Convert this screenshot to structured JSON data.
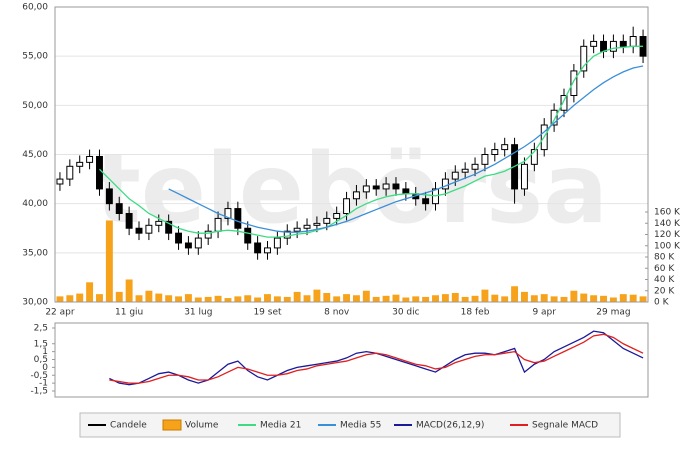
{
  "chart_data": [
    {
      "type": "candlestick",
      "watermark": "telebörsa",
      "categories": [
        "22 apr",
        null,
        null,
        null,
        null,
        null,
        null,
        "11 giu",
        null,
        null,
        null,
        null,
        null,
        null,
        "31 lug",
        null,
        null,
        null,
        null,
        null,
        null,
        "19 set",
        null,
        null,
        null,
        null,
        null,
        null,
        "8 nov",
        null,
        null,
        null,
        null,
        null,
        null,
        "30 dic",
        null,
        null,
        null,
        null,
        null,
        null,
        "18 feb",
        null,
        null,
        null,
        null,
        null,
        null,
        "9 apr",
        null,
        null,
        null,
        null,
        null,
        null,
        "29 mag",
        null,
        null,
        null
      ],
      "ylim": [
        30,
        60
      ],
      "yticks": [
        {
          "value": 30,
          "label": "30,00"
        },
        {
          "value": 35,
          "label": "35,00"
        },
        {
          "value": 40,
          "label": "40,00"
        },
        {
          "value": 45,
          "label": "45,00"
        },
        {
          "value": 50,
          "label": "50,00"
        },
        {
          "value": 55,
          "label": "55,00"
        },
        {
          "value": 60,
          "label": "60,00"
        }
      ],
      "y2lim": [
        0,
        160
      ],
      "y2ticks": [
        {
          "value": 0,
          "label": "0 K"
        },
        {
          "value": 20,
          "label": "20 K"
        },
        {
          "value": 40,
          "label": "40 K"
        },
        {
          "value": 60,
          "label": "60 K"
        },
        {
          "value": 80,
          "label": "80 K"
        },
        {
          "value": 100,
          "label": "100 K"
        },
        {
          "value": 120,
          "label": "120 K"
        },
        {
          "value": 140,
          "label": "140 K"
        },
        {
          "value": 160,
          "label": "160 K"
        }
      ],
      "grid": true,
      "series": [
        {
          "name": "Candele",
          "type": "candlestick",
          "color": "#000000",
          "open": [
            42.0,
            42.5,
            43.8,
            44.2,
            44.8,
            41.5,
            40.0,
            39.0,
            37.5,
            37.0,
            37.8,
            38.2,
            37.0,
            36.0,
            35.5,
            36.5,
            37.2,
            38.5,
            39.5,
            37.5,
            36.0,
            35.0,
            35.5,
            36.5,
            37.2,
            37.5,
            37.8,
            38.0,
            38.5,
            39.0,
            40.5,
            41.2,
            41.8,
            41.5,
            42.0,
            41.5,
            41.0,
            40.5,
            40.0,
            41.5,
            42.5,
            43.2,
            43.5,
            44.0,
            45.0,
            45.5,
            46.0,
            41.5,
            44.0,
            45.5,
            48.0,
            49.5,
            51.0,
            53.5,
            56.0,
            56.5,
            55.5,
            56.5,
            56.0,
            57.0
          ],
          "high": [
            43.2,
            44.5,
            44.9,
            45.5,
            45.5,
            42.2,
            40.7,
            39.7,
            38.2,
            38.5,
            38.9,
            38.9,
            37.7,
            36.7,
            37.2,
            37.9,
            39.2,
            40.2,
            40.2,
            38.2,
            36.7,
            36.2,
            37.2,
            37.9,
            38.2,
            38.5,
            38.7,
            39.2,
            39.7,
            41.2,
            41.9,
            42.5,
            42.5,
            42.7,
            42.7,
            42.2,
            41.7,
            41.2,
            42.2,
            43.2,
            43.9,
            44.2,
            44.7,
            45.7,
            46.2,
            46.7,
            46.7,
            44.7,
            46.2,
            48.7,
            50.2,
            51.7,
            54.2,
            56.7,
            57.2,
            57.2,
            57.2,
            57.2,
            58.0,
            57.7
          ],
          "low": [
            41.3,
            41.8,
            43.1,
            43.5,
            40.8,
            39.3,
            38.3,
            36.8,
            36.3,
            36.3,
            37.1,
            36.3,
            35.3,
            34.8,
            34.8,
            35.8,
            36.5,
            37.8,
            36.8,
            35.3,
            34.3,
            34.3,
            34.8,
            35.8,
            36.5,
            36.8,
            37.1,
            37.3,
            37.8,
            38.3,
            39.8,
            40.5,
            40.8,
            40.8,
            40.8,
            40.3,
            39.8,
            39.3,
            39.3,
            40.8,
            41.8,
            42.5,
            42.8,
            43.3,
            44.3,
            44.8,
            40.0,
            40.8,
            43.3,
            44.8,
            47.3,
            48.8,
            50.3,
            52.8,
            55.3,
            54.8,
            54.8,
            55.3,
            55.3,
            54.3
          ],
          "close": [
            42.5,
            43.8,
            44.2,
            44.8,
            41.5,
            40.0,
            39.0,
            37.5,
            37.0,
            37.8,
            38.2,
            37.0,
            36.0,
            35.5,
            36.5,
            37.2,
            38.5,
            39.5,
            37.5,
            36.0,
            35.0,
            35.5,
            36.5,
            37.2,
            37.5,
            37.8,
            38.0,
            38.5,
            39.0,
            40.5,
            41.2,
            41.8,
            41.5,
            42.0,
            41.5,
            41.0,
            40.5,
            40.0,
            41.5,
            42.5,
            43.2,
            43.5,
            44.0,
            45.0,
            45.5,
            46.0,
            41.5,
            44.0,
            45.5,
            48.0,
            49.5,
            51.0,
            53.5,
            56.0,
            56.5,
            55.5,
            56.5,
            56.0,
            57.0,
            55.0
          ]
        },
        {
          "name": "Volume",
          "type": "bar",
          "axis": "y2",
          "color": "#f7a21b",
          "values": [
            10,
            12,
            15,
            35,
            14,
            145,
            18,
            40,
            12,
            20,
            15,
            12,
            10,
            14,
            8,
            9,
            11,
            7,
            10,
            12,
            8,
            14,
            10,
            9,
            18,
            12,
            22,
            16,
            10,
            14,
            12,
            20,
            9,
            11,
            13,
            8,
            10,
            9,
            12,
            14,
            16,
            9,
            11,
            22,
            13,
            10,
            28,
            18,
            12,
            14,
            10,
            9,
            20,
            15,
            12,
            11,
            8,
            14,
            13,
            10
          ]
        },
        {
          "name": "Media 21",
          "type": "line",
          "color": "#3ddc84",
          "values": [
            null,
            null,
            null,
            null,
            43.5,
            42.5,
            41.5,
            40.5,
            39.8,
            39.0,
            38.5,
            38.0,
            37.5,
            37.2,
            37.0,
            37.0,
            37.2,
            37.3,
            37.2,
            37.0,
            36.8,
            36.6,
            36.6,
            36.7,
            36.9,
            37.0,
            37.3,
            37.6,
            38.2,
            38.8,
            39.5,
            40.0,
            40.4,
            40.7,
            40.9,
            41.0,
            41.0,
            40.9,
            40.8,
            41.0,
            41.4,
            41.8,
            42.3,
            42.8,
            43.0,
            43.3,
            43.8,
            44.3,
            45.3,
            46.8,
            48.5,
            50.5,
            52.5,
            54.0,
            55.0,
            55.5,
            55.8,
            55.9,
            56.0,
            56.0
          ]
        },
        {
          "name": "Media 55",
          "type": "line",
          "color": "#3a8fd9",
          "values": [
            null,
            null,
            null,
            null,
            null,
            null,
            null,
            null,
            null,
            null,
            null,
            41.5,
            41.0,
            40.5,
            40.0,
            39.5,
            39.0,
            38.6,
            38.2,
            37.9,
            37.6,
            37.4,
            37.2,
            37.1,
            37.1,
            37.2,
            37.4,
            37.6,
            37.9,
            38.2,
            38.6,
            39.0,
            39.4,
            39.8,
            40.2,
            40.5,
            40.8,
            41.1,
            41.4,
            41.8,
            42.2,
            42.6,
            43.0,
            43.5,
            44.0,
            44.6,
            45.2,
            45.8,
            46.5,
            47.3,
            48.2,
            49.1,
            50.0,
            50.8,
            51.6,
            52.3,
            52.9,
            53.4,
            53.8,
            54.0
          ]
        }
      ]
    },
    {
      "type": "line",
      "ylim": [
        -1.5,
        2.5
      ],
      "yticks": [
        {
          "value": 2.5,
          "label": "2,5"
        },
        {
          "value": 1.5,
          "label": "1,5"
        },
        1,
        {
          "value": 0.5,
          "label": "0,5"
        },
        0,
        {
          "value": -0.5,
          "label": "-0,5"
        },
        -1,
        {
          "value": -1.5,
          "label": "-1,5"
        }
      ],
      "series": [
        {
          "name": "MACD(26,12,9)",
          "color": "#1a1a99",
          "values": [
            null,
            null,
            null,
            null,
            null,
            -0.7,
            -1.0,
            -1.1,
            -1.0,
            -0.7,
            -0.4,
            -0.3,
            -0.5,
            -0.8,
            -1.0,
            -0.8,
            -0.3,
            0.2,
            0.4,
            -0.2,
            -0.6,
            -0.8,
            -0.5,
            -0.2,
            0.0,
            0.1,
            0.2,
            0.3,
            0.4,
            0.6,
            0.9,
            1.0,
            0.9,
            0.7,
            0.5,
            0.3,
            0.1,
            -0.1,
            -0.3,
            0.1,
            0.5,
            0.8,
            0.9,
            0.9,
            0.8,
            1.0,
            1.2,
            -0.3,
            0.2,
            0.5,
            1.0,
            1.3,
            1.6,
            1.9,
            2.3,
            2.2,
            1.7,
            1.2,
            0.9,
            0.6
          ]
        },
        {
          "name": "Segnale MACD",
          "color": "#e02020",
          "values": [
            null,
            null,
            null,
            null,
            null,
            -0.8,
            -0.9,
            -1.0,
            -1.0,
            -0.9,
            -0.7,
            -0.5,
            -0.5,
            -0.6,
            -0.8,
            -0.8,
            -0.6,
            -0.3,
            0.0,
            -0.1,
            -0.3,
            -0.5,
            -0.5,
            -0.4,
            -0.2,
            -0.1,
            0.1,
            0.2,
            0.3,
            0.4,
            0.6,
            0.8,
            0.9,
            0.8,
            0.6,
            0.4,
            0.2,
            0.1,
            -0.1,
            0.0,
            0.3,
            0.5,
            0.7,
            0.8,
            0.8,
            0.9,
            1.0,
            0.5,
            0.3,
            0.4,
            0.7,
            1.0,
            1.3,
            1.6,
            2.0,
            2.1,
            1.9,
            1.5,
            1.2,
            0.9
          ]
        }
      ]
    }
  ]
}
